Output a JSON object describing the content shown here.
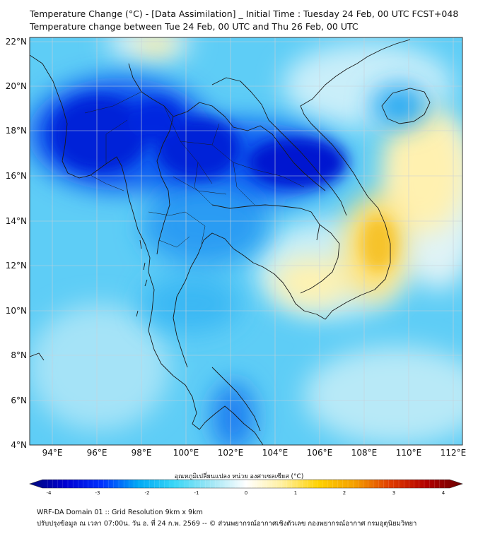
{
  "header": {
    "title_line1": "Temperature Change (°C) - [Data Assimilation] _ Initial Time : Tuesday 24 Feb, 00 UTC FCST+048",
    "title_line2": "Temperature change between Tue 24 Feb, 00 UTC and Thu 26 Feb, 00 UTC"
  },
  "map": {
    "lat_labels": [
      "22°N",
      "20°N",
      "18°N",
      "16°N",
      "14°N",
      "12°N",
      "10°N",
      "8°N",
      "6°N",
      "4°N"
    ],
    "lon_labels": [
      "94°E",
      "96°E",
      "98°E",
      "100°E",
      "102°E",
      "104°E",
      "106°E",
      "108°E",
      "110°E",
      "112°E"
    ],
    "lat_values": [
      22,
      20,
      18,
      16,
      14,
      12,
      10,
      8,
      6,
      4
    ],
    "lon_values": [
      94,
      96,
      98,
      100,
      102,
      104,
      106,
      108,
      110,
      112
    ],
    "extent": {
      "lon_min": 93,
      "lon_max": 112.4,
      "lat_min": 4,
      "lat_max": 22.2
    },
    "temperature_fields": [
      {
        "name": "cooling-core-myanmar",
        "lon": 96.8,
        "lat": 17.8,
        "delta_c": -3.5
      },
      {
        "name": "cooling-core-northern-thailand",
        "lon": 100.2,
        "lat": 17.2,
        "delta_c": -3.2
      },
      {
        "name": "cooling-core-laos-cambodia",
        "lon": 104.5,
        "lat": 16.3,
        "delta_c": -3.3
      },
      {
        "name": "cooling-area-central-thailand",
        "lon": 101.0,
        "lat": 14.5,
        "delta_c": -2.2
      },
      {
        "name": "cooling-area-malay-peninsula",
        "lon": 102.0,
        "lat": 5.0,
        "delta_c": -2.0
      },
      {
        "name": "warming-area-south-vietnam-coast",
        "lon": 108.6,
        "lat": 12.9,
        "delta_c": 2.2
      },
      {
        "name": "warming-area-mekong-delta",
        "lon": 105.5,
        "lat": 10.8,
        "delta_c": 0.8
      },
      {
        "name": "warming-area-east-sea",
        "lon": 111.5,
        "lat": 16.0,
        "delta_c": 0.6
      },
      {
        "name": "warming-area-north-edge",
        "lon": 98.5,
        "lat": 22.0,
        "delta_c": 0.6
      },
      {
        "name": "cooling-area-hainan",
        "lon": 110.0,
        "lat": 19.2,
        "delta_c": -1.5
      }
    ]
  },
  "colorbar": {
    "title": "อุณหภูมิเปลี่ยนแปลง หน่วย องศาเซลเซียส (°C)",
    "ticks": [
      "-4",
      "-3",
      "-2",
      "-1",
      "0",
      "1",
      "2",
      "3",
      "4"
    ],
    "tick_values": [
      -4,
      -3,
      -2,
      -1,
      0,
      1,
      2,
      3,
      4
    ],
    "range": [
      -4,
      4
    ],
    "colors": [
      "#000a7c",
      "#0000d2",
      "#0032ff",
      "#00a8f5",
      "#37d6f7",
      "#9ee6f5",
      "#ffffff",
      "#fff0a0",
      "#ffd200",
      "#f5a000",
      "#e03c00",
      "#b20000",
      "#680000"
    ]
  },
  "footer": {
    "line1": "WRF-DA Domain 01 :: Grid Resolution 9km x 9km",
    "line2": "ปรับปรุงข้อมูล ณ เวลา 07:00น. วัน อ. ที่ 24 ก.พ. 2569 -- © ส่วนพยากรณ์อากาศเชิงตัวเลข กองพยากรณ์อากาศ กรมอุตุนิยมวิทยา"
  }
}
